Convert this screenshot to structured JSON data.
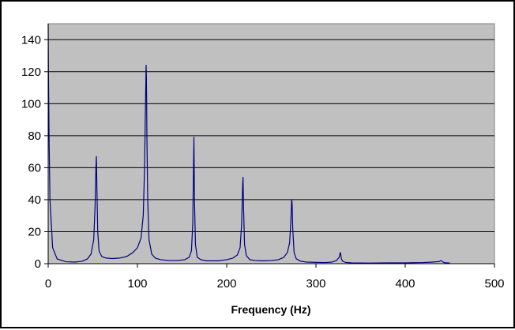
{
  "chart_data": {
    "type": "line",
    "title": "",
    "xlabel": "Frequency (Hz)",
    "ylabel": "",
    "xlim": [
      0,
      500
    ],
    "ylim": [
      0,
      150
    ],
    "x_ticks": [
      0,
      100,
      200,
      300,
      400,
      500
    ],
    "y_ticks": [
      0,
      20,
      40,
      60,
      80,
      100,
      120,
      140
    ],
    "grid": "horizontal",
    "legend": "none",
    "colors": {
      "plot_background": "#C0C0C0",
      "line": "#000080",
      "grid": "#000000"
    },
    "series": [
      {
        "x": [
          0,
          0.3,
          1,
          2,
          5,
          10,
          20,
          30,
          38,
          44,
          48,
          51,
          52.5,
          53.5,
          54,
          54.5,
          55.5,
          57,
          60,
          65,
          72,
          80,
          88,
          95,
          100,
          104,
          106.5,
          108,
          109,
          109.7,
          110.1,
          110.6,
          111.5,
          113,
          116,
          120,
          126,
          135,
          145,
          153,
          158,
          160.5,
          162,
          162.8,
          163.3,
          163.9,
          165,
          167,
          171,
          178,
          190,
          200,
          207,
          212,
          215,
          216.8,
          217.8,
          218.3,
          218.9,
          220,
          222,
          226,
          232,
          240,
          250,
          258,
          264,
          268,
          270.5,
          272,
          272.8,
          273.3,
          274,
          275.5,
          278,
          283,
          290,
          300,
          310,
          318,
          323,
          326,
          327.3,
          327.8,
          328.5,
          330,
          333,
          340,
          360,
          380,
          400,
          410,
          420,
          430,
          438,
          440,
          442,
          444,
          450
        ],
        "y": [
          150,
          120,
          78,
          40,
          10,
          3,
          1.2,
          1,
          1.5,
          3,
          6,
          15,
          35,
          60,
          67,
          50,
          20,
          8,
          4.5,
          3.5,
          3.2,
          3.5,
          4.5,
          7,
          10,
          16,
          30,
          60,
          100,
          124,
          115,
          80,
          40,
          15,
          6,
          3.5,
          2.5,
          2,
          2,
          2.5,
          4,
          8,
          25,
          60,
          79,
          40,
          12,
          4,
          2.5,
          1.8,
          1.8,
          2.5,
          3.5,
          5.5,
          10,
          25,
          48,
          54,
          35,
          12,
          5,
          2.5,
          2,
          1.8,
          2,
          2.5,
          4,
          7,
          13,
          28,
          40,
          38,
          22,
          7,
          3,
          1.5,
          1,
          0.8,
          0.7,
          1,
          2,
          4,
          7,
          6,
          3,
          1.5,
          0.8,
          0.5,
          0.4,
          0.5,
          0.5,
          0.6,
          0.7,
          1,
          1.3,
          2,
          1.2,
          0.6,
          0.4
        ]
      }
    ]
  }
}
